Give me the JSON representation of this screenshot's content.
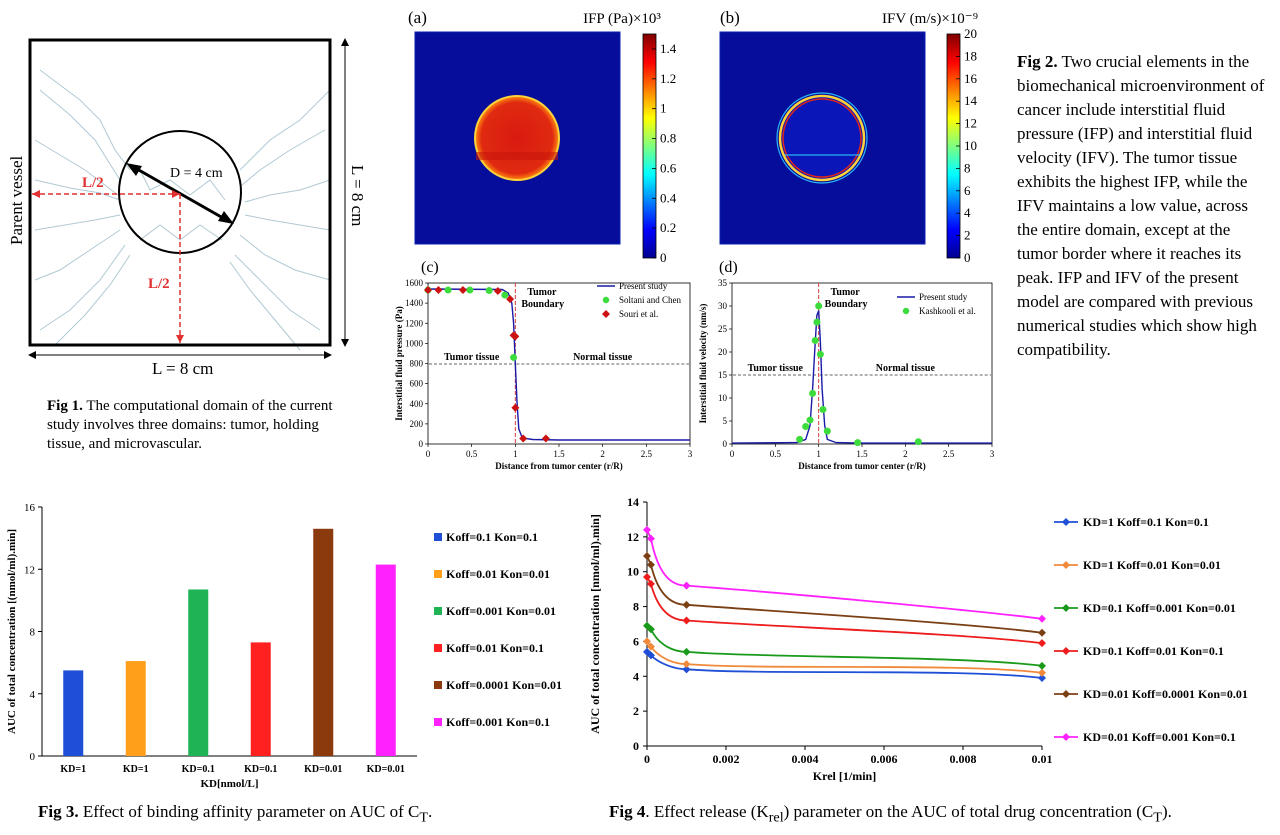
{
  "fig1": {
    "parent_vessel": "Parent vessel",
    "diameter": "D = 4 cm",
    "half_left": "L/2",
    "half_bottom": "L/2",
    "dim_right": "L = 8 cm",
    "dim_bottom": "L = 8 cm",
    "caption_label": "Fig 1.",
    "caption_text": " The computational domain of the current study involves three domains: tumor, holding tissue, and microvascular."
  },
  "fig2": {
    "panel_a": {
      "label": "(a)",
      "title": "IFP (Pa)×10³",
      "colorbar_ticks": [
        "1.4",
        "1.2",
        "1",
        "0.8",
        "0.6",
        "0.4",
        "0.2",
        "0"
      ]
    },
    "panel_b": {
      "label": "(b)",
      "title": "IFV (m/s)×10⁻⁹",
      "colorbar_ticks": [
        "20",
        "18",
        "16",
        "14",
        "12",
        "10",
        "8",
        "6",
        "4",
        "2",
        "0"
      ]
    },
    "caption_label": "Fig 2.",
    "caption_text": " Two crucial elements in the biomechanical microenvironment of cancer include interstitial fluid pressure (IFP) and interstitial fluid velocity (IFV). The tumor tissue exhibits the highest IFP, while the IFV maintains a low value, across the entire domain, except at the tumor border where it reaches its peak. IFP and IFV of the present model are compared with previous numerical studies which show high compatibility."
  },
  "panel_c": {
    "label": "(c)",
    "ylabel": "Interstitial fluid pressure (Pa)",
    "xlabel": "Distance from tumor center (r/R)",
    "annot_boundary_1": "Tumor",
    "annot_boundary_2": "Boundary",
    "annot_tumor": "Tumor tissue",
    "annot_normal": "Normal tissue",
    "legend": [
      "Present study",
      "Soltani and Chen",
      "Souri et al."
    ]
  },
  "panel_d": {
    "label": "(d)",
    "ylabel": "Interstitial fluid velocity (nm/s)",
    "xlabel": "Distance from tumor center (r/R)",
    "annot_boundary_1": "Tumor",
    "annot_boundary_2": "Boundary",
    "annot_tumor": "Tumor tissue",
    "annot_normal": "Normal tissue",
    "legend": [
      "Present study",
      "Kashkooli et al."
    ]
  },
  "fig3": {
    "caption_label": "Fig 3.",
    "caption_text": " Effect of binding affinity parameter on AUC of C",
    "caption_sub": "T",
    "caption_end": "."
  },
  "fig4": {
    "caption_label": "Fig 4",
    "caption_text": ". Effect release (K",
    "caption_sub1": "rel",
    "caption_mid": ") parameter on the AUC of total drug concentration (C",
    "caption_sub2": "T",
    "caption_end": ")."
  },
  "chart_data": [
    {
      "id": "ifp",
      "type": "line",
      "xlabel": "Distance from tumor center (r/R)",
      "ylabel": "Interstitial fluid pressure (Pa)",
      "xlim": [
        0,
        3
      ],
      "ylim": [
        0,
        1600
      ],
      "xticks": [
        "0",
        "0.5",
        "1",
        "1.5",
        "2",
        "2.5",
        "3"
      ],
      "yticks": [
        "0",
        "200",
        "400",
        "600",
        "800",
        "1000",
        "1200",
        "1400",
        "1600"
      ],
      "series": [
        {
          "name": "Present study",
          "color": "#1a1aa6",
          "x": [
            0,
            0.85,
            0.92,
            0.96,
            0.98,
            1.0,
            1.02,
            1.04,
            1.08,
            1.2,
            1.5,
            2,
            2.5,
            3
          ],
          "y": [
            1540,
            1535,
            1500,
            1400,
            1200,
            800,
            400,
            150,
            60,
            45,
            40,
            40,
            40,
            40
          ]
        },
        {
          "name": "Soltani and Chen",
          "color": "#3ddc3d",
          "x": [
            0.0,
            0.23,
            0.48,
            0.7,
            0.88,
            0.98
          ],
          "y": [
            1530,
            1530,
            1530,
            1525,
            1480,
            860
          ]
        },
        {
          "name": "Souri et al.",
          "color": "#cc1111",
          "x": [
            0.0,
            0.12,
            0.4,
            0.8,
            0.94,
            0.98,
            1.0,
            1.0,
            1.09,
            1.35
          ],
          "y": [
            1530,
            1530,
            1530,
            1520,
            1440,
            1080,
            1070,
            360,
            55,
            55
          ]
        }
      ]
    },
    {
      "id": "ifv",
      "type": "line",
      "xlabel": "Distance from tumor center (r/R)",
      "ylabel": "Interstitial fluid velocity (nm/s)",
      "xlim": [
        0,
        3
      ],
      "ylim": [
        0,
        35
      ],
      "xticks": [
        "0",
        "0.5",
        "1",
        "1.5",
        "2",
        "2.5",
        "3"
      ],
      "yticks": [
        "0",
        "5",
        "10",
        "15",
        "20",
        "25",
        "30",
        "35"
      ],
      "series": [
        {
          "name": "Present study",
          "color": "#1a1aa6",
          "x": [
            0,
            0.75,
            0.85,
            0.9,
            0.93,
            0.96,
            0.98,
            1.0,
            1.02,
            1.04,
            1.07,
            1.1,
            1.2,
            1.5,
            3
          ],
          "y": [
            0.2,
            0.3,
            1,
            4,
            12,
            22,
            28,
            29,
            22,
            12,
            4,
            1,
            0.3,
            0.2,
            0.2
          ]
        },
        {
          "name": "Kashkooli et al.",
          "color": "#3ddc3d",
          "x": [
            0.78,
            0.85,
            0.9,
            0.93,
            0.96,
            0.98,
            1.0,
            1.02,
            1.05,
            1.1,
            1.45,
            2.15
          ],
          "y": [
            1,
            3.8,
            5.2,
            11,
            22.5,
            26.5,
            30,
            19.5,
            7.5,
            2.8,
            0.3,
            0.5
          ]
        }
      ]
    },
    {
      "id": "fig3-bars",
      "type": "bar",
      "xlabel": "KD[nmol/L]",
      "ylabel": "AUC of total concentration [(nmol/ml).min]",
      "ylim": [
        0,
        16
      ],
      "yticks": [
        "0",
        "4",
        "8",
        "12",
        "16"
      ],
      "categories": [
        "KD=1",
        "KD=1",
        "KD=0.1",
        "KD=0.1",
        "KD=0.01",
        "KD=0.01"
      ],
      "values": [
        5.5,
        6.1,
        10.7,
        7.3,
        14.6,
        12.3
      ],
      "colors": [
        "#1f4fd6",
        "#ff9f1a",
        "#1fb356",
        "#ff2020",
        "#8b3a0e",
        "#ff22ff"
      ],
      "legend": [
        "Koff=0.1 Kon=0.1",
        "Koff=0.01 Kon=0.01",
        "Koff=0.001 Kon=0.01",
        "Koff=0.01 Kon=0.1",
        "Koff=0.0001 Kon=0.01",
        "Koff=0.001 Kon=0.1"
      ]
    },
    {
      "id": "fig4-lines",
      "type": "line",
      "xlabel": "Krel [1/min]",
      "ylabel": "AUC of total concentration [nmol/ml).min]",
      "xlim": [
        0,
        0.01
      ],
      "ylim": [
        0,
        14
      ],
      "xticks": [
        "0",
        "0.002",
        "0.004",
        "0.006",
        "0.008",
        "0.01"
      ],
      "yticks": [
        "0",
        "2",
        "4",
        "6",
        "8",
        "10",
        "12",
        "14"
      ],
      "x": [
        0,
        0.0001,
        0.001,
        0.01
      ],
      "series": [
        {
          "name": "KD=1 Koff=0.1 Kon=0.1",
          "color": "#1f4fd6",
          "values": [
            5.4,
            5.2,
            4.4,
            3.9
          ]
        },
        {
          "name": "KD=1 Koff=0.01 Kon=0.01",
          "color": "#f08a3a",
          "values": [
            6.0,
            5.7,
            4.7,
            4.2
          ]
        },
        {
          "name": "KD=0.1 Koff=0.001 Kon=0.01",
          "color": "#1a9a1a",
          "values": [
            6.9,
            6.7,
            5.4,
            4.6
          ]
        },
        {
          "name": "KD=0.1 Koff=0.01 Kon=0.1",
          "color": "#ee1c1c",
          "values": [
            9.7,
            9.3,
            7.2,
            5.9
          ]
        },
        {
          "name": "KD=0.01 Koff=0.0001 Kon=0.01",
          "color": "#7b3f14",
          "values": [
            10.9,
            10.4,
            8.1,
            6.5
          ]
        },
        {
          "name": "KD=0.01 Koff=0.001 Kon=0.1",
          "color": "#ff22ff",
          "values": [
            12.4,
            11.9,
            9.2,
            7.3
          ]
        }
      ]
    }
  ]
}
